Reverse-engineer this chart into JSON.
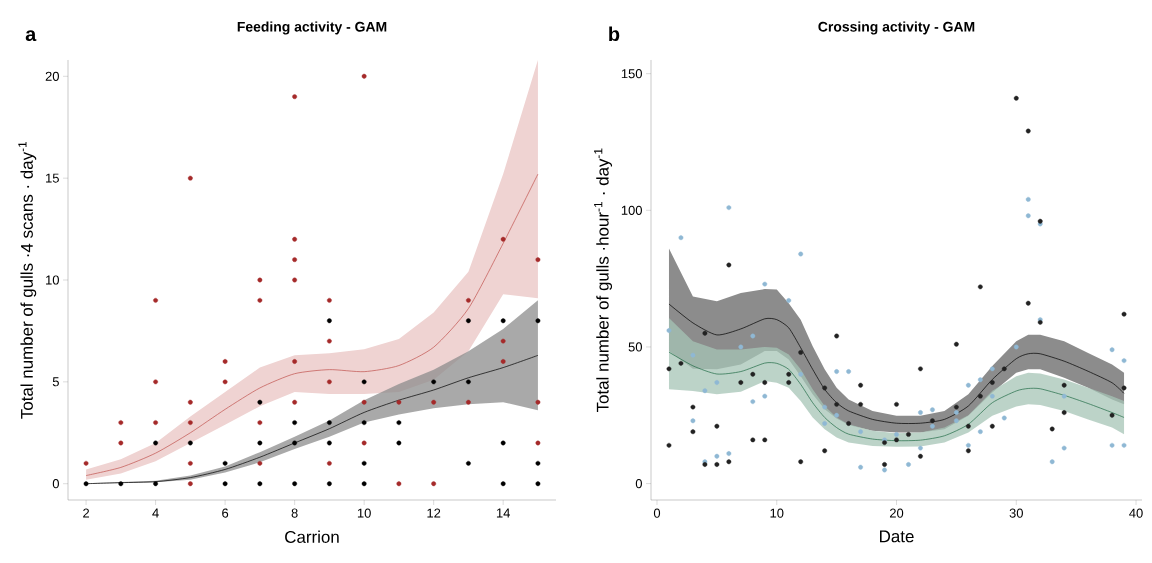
{
  "chart_data": [
    {
      "type": "scatter",
      "title": "Feeding activity - GAM",
      "xlabel": "Carrion",
      "ylabel": "Total number of gulls ·4 scans · day$^{-1}$",
      "annotations": [
        "a"
      ],
      "xlim": [
        1.48,
        15.52
      ],
      "ylim": [
        -0.8,
        20.8
      ],
      "xticks": [
        2,
        4,
        6,
        8,
        10,
        12,
        14
      ],
      "yticks": [
        0,
        5,
        10,
        15,
        20
      ],
      "grid": false,
      "series": [
        {
          "type": "line",
          "color": "#c0504d",
          "x": [
            2,
            3,
            4,
            5,
            6,
            7,
            8,
            9,
            10,
            11,
            12,
            13,
            14,
            15
          ],
          "values": [
            0.4,
            0.8,
            1.5,
            2.5,
            3.65,
            4.7,
            5.4,
            5.6,
            5.5,
            5.8,
            6.7,
            8.6,
            11.8,
            15.2
          ],
          "lower": [
            0.2,
            0.5,
            1.1,
            2.0,
            2.9,
            3.8,
            4.5,
            4.4,
            4.4,
            4.5,
            5.1,
            6.5,
            9.3,
            9.1
          ],
          "upper": [
            0.7,
            1.2,
            2.0,
            3.3,
            4.5,
            5.7,
            6.3,
            6.4,
            6.6,
            7.1,
            8.4,
            10.4,
            15.2,
            20.8
          ]
        },
        {
          "type": "line",
          "color": "#000000",
          "x": [
            2,
            3,
            4,
            5,
            6,
            7,
            8,
            9,
            10,
            11,
            12,
            13,
            14,
            15
          ],
          "values": [
            0,
            0.05,
            0.1,
            0.3,
            0.7,
            1.3,
            2.0,
            2.7,
            3.5,
            4.1,
            4.6,
            5.2,
            5.7,
            6.3
          ],
          "lower": [
            0,
            0.03,
            0.07,
            0.2,
            0.55,
            1.05,
            1.7,
            2.3,
            3.0,
            3.4,
            3.7,
            3.9,
            4.0,
            3.6
          ],
          "upper": [
            0.02,
            0.08,
            0.15,
            0.4,
            0.85,
            1.55,
            2.3,
            3.1,
            4.1,
            4.9,
            5.6,
            6.5,
            7.6,
            9.0
          ]
        },
        {
          "marker": "circle",
          "color": "#a52a2a",
          "x": [
            2,
            3,
            3,
            4,
            4,
            4,
            5,
            5,
            5,
            5,
            5,
            6,
            6,
            7,
            7,
            7,
            7,
            8,
            8,
            8,
            8,
            8,
            8,
            9,
            9,
            9,
            9,
            10,
            10,
            10,
            11,
            11,
            12,
            12,
            13,
            13,
            14,
            14,
            14,
            15,
            15,
            15
          ],
          "values": [
            1,
            3,
            2,
            9,
            5,
            3,
            15,
            4,
            3,
            1,
            0,
            6,
            5,
            10,
            9,
            3,
            1,
            19,
            12,
            11,
            10,
            6,
            4,
            9,
            7,
            5,
            1,
            20,
            4,
            2,
            4,
            0,
            4,
            0,
            9,
            4,
            12,
            7,
            6,
            11,
            4,
            2
          ]
        },
        {
          "marker": "circle",
          "color": "#000000",
          "x": [
            2,
            3,
            4,
            4,
            5,
            6,
            6,
            7,
            7,
            7,
            8,
            8,
            8,
            9,
            9,
            9,
            9,
            10,
            10,
            10,
            10,
            11,
            11,
            12,
            13,
            13,
            13,
            14,
            14,
            14,
            15,
            15,
            15
          ],
          "values": [
            0,
            0,
            2,
            0,
            2,
            1,
            0,
            4,
            2,
            0,
            3,
            2,
            0,
            8,
            3,
            2,
            0,
            5,
            3,
            1,
            0,
            3,
            2,
            5,
            8,
            5,
            1,
            8,
            2,
            0,
            8,
            1,
            0
          ]
        }
      ]
    },
    {
      "type": "scatter",
      "title": "Crossing activity - GAM",
      "xlabel": "Date",
      "ylabel": "Total number of gulls ·hour$^{-1}$ · day$^{-1}$",
      "annotations": [
        "b"
      ],
      "xlim": [
        -0.5,
        40.5
      ],
      "ylim": [
        -6,
        155
      ],
      "xticks": [
        0,
        10,
        20,
        30,
        40
      ],
      "yticks": [
        0,
        50,
        100,
        150
      ],
      "grid": false,
      "series": [
        {
          "type": "line",
          "color": "#000000",
          "x": [
            1,
            3,
            5,
            7,
            9,
            10,
            11,
            12,
            13,
            14,
            15,
            16,
            18,
            20,
            22,
            24,
            26,
            28,
            30,
            31,
            32,
            34,
            36,
            38,
            39
          ],
          "values": [
            65.7,
            58.8,
            54.4,
            56.6,
            60.3,
            60.0,
            57.0,
            49.7,
            41.8,
            34.5,
            29.6,
            26.6,
            23.5,
            22.1,
            22.1,
            23.5,
            28.4,
            38.1,
            45.7,
            47.5,
            47.5,
            44.8,
            41.1,
            36.9,
            33.0
          ],
          "lower": [
            48.5,
            42,
            41.8,
            43.6,
            48.5,
            48.5,
            45.4,
            39.3,
            32.7,
            27.2,
            23.8,
            21.4,
            19.3,
            18.7,
            18.7,
            19.9,
            24.8,
            33.3,
            40.6,
            41.8,
            41.8,
            38.7,
            35.1,
            30.8,
            29
          ],
          "upper": [
            86,
            68.5,
            66.7,
            69.7,
            71.2,
            71,
            66,
            60,
            50.3,
            41.8,
            35.1,
            30.8,
            26.6,
            24.8,
            24.8,
            26.6,
            32.7,
            43,
            52.1,
            54.5,
            54.5,
            52.1,
            47.8,
            43.6,
            40.6
          ]
        },
        {
          "type": "line",
          "color": "#1f6b45",
          "x": [
            1,
            3,
            5,
            7,
            9,
            10,
            11,
            12,
            13,
            14,
            15,
            16,
            18,
            20,
            22,
            24,
            26,
            28,
            30,
            31,
            32,
            34,
            36,
            38,
            39
          ],
          "values": [
            48.1,
            43.1,
            40.1,
            41,
            44.1,
            44,
            41.8,
            36.3,
            29.6,
            24.2,
            20.5,
            18.1,
            16.3,
            15.7,
            15.9,
            17.5,
            21.7,
            29.6,
            33.9,
            34.8,
            34.7,
            32.3,
            29.3,
            26,
            24.2
          ],
          "lower": [
            34.5,
            33.9,
            32.7,
            33.6,
            37.5,
            36.9,
            35.1,
            30.2,
            24.2,
            19.9,
            16.9,
            15,
            13.8,
            13.5,
            13.6,
            15,
            18.7,
            24.8,
            28.2,
            29,
            28.8,
            26.6,
            23.5,
            20.5,
            18.1
          ],
          "upper": [
            60.6,
            52.1,
            49.1,
            49.1,
            50,
            49.7,
            47.2,
            41.8,
            34.5,
            28.4,
            24.2,
            21.7,
            19.3,
            18.4,
            18.7,
            20.5,
            25,
            34,
            39.3,
            40.6,
            40.3,
            38.1,
            35.1,
            32,
            30.2
          ]
        },
        {
          "marker": "circle",
          "color": "#8fb8d4",
          "x": [
            2,
            6,
            12,
            31,
            31,
            32,
            9,
            11,
            32,
            1,
            8,
            7,
            30,
            38,
            3,
            39,
            28,
            15,
            16,
            12,
            27,
            5,
            26,
            4,
            9,
            28,
            34,
            8,
            14,
            15,
            23,
            22,
            25,
            3,
            25,
            29,
            14,
            23,
            17,
            27,
            20,
            19,
            26,
            38,
            39,
            22,
            34,
            6,
            5,
            4,
            33,
            17,
            21,
            19
          ],
          "values": [
            90,
            101,
            84,
            104,
            98,
            95,
            73,
            67,
            60,
            56,
            54,
            50,
            50,
            49,
            47,
            45,
            42,
            41,
            41,
            40,
            38,
            37,
            36,
            34,
            32,
            32,
            32,
            30,
            28,
            25,
            27,
            26,
            26,
            23,
            23,
            24,
            22,
            21,
            19,
            19,
            18,
            16,
            14,
            14,
            14,
            13,
            13,
            11,
            10,
            8,
            8,
            6,
            7,
            5
          ]
        },
        {
          "marker": "circle",
          "color": "#222222",
          "x": [
            30,
            31,
            6,
            32,
            27,
            31,
            39,
            32,
            4,
            15,
            25,
            12,
            2,
            1,
            22,
            29,
            8,
            11,
            7,
            11,
            9,
            28,
            14,
            17,
            39,
            34,
            27,
            15,
            17,
            20,
            3,
            25,
            34,
            23,
            38,
            16,
            5,
            26,
            28,
            3,
            21,
            33,
            20,
            19,
            8,
            9,
            1,
            14,
            26,
            22,
            6,
            12,
            4,
            5,
            19
          ],
          "values": [
            141,
            129,
            80,
            96,
            72,
            66,
            62,
            59,
            55,
            54,
            51,
            48,
            44,
            42,
            42,
            42,
            40,
            40,
            37,
            37,
            37,
            37,
            35,
            36,
            35,
            36,
            32,
            29,
            29,
            29,
            28,
            28,
            26,
            23,
            25,
            22,
            21,
            21,
            21,
            19,
            18,
            20,
            16,
            15,
            16,
            16,
            14,
            12,
            12,
            10,
            8,
            8,
            7,
            7,
            7
          ]
        }
      ]
    }
  ]
}
